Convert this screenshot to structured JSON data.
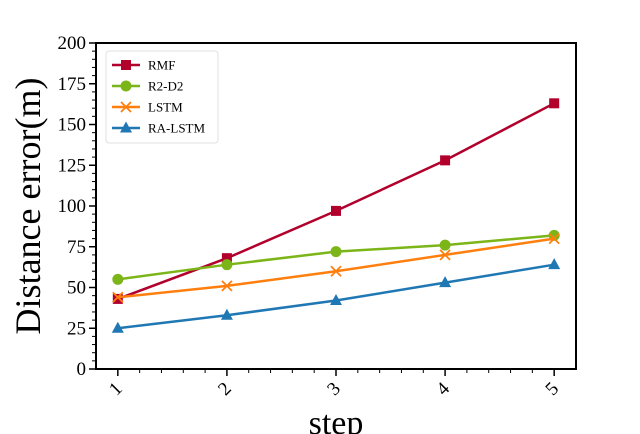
{
  "chart_data": {
    "type": "line",
    "xlabel": "step",
    "ylabel": "Distance error(m)",
    "x": [
      1,
      2,
      3,
      4,
      5
    ],
    "xticks": [
      "1",
      "2",
      "3",
      "4",
      "5"
    ],
    "ylim": [
      0,
      200
    ],
    "yticks": [
      "0",
      "25",
      "50",
      "75",
      "100",
      "125",
      "150",
      "175",
      "200"
    ],
    "grid": false,
    "legend_position": "top-left",
    "series": [
      {
        "name": "RMF",
        "values": [
          43,
          68,
          97,
          128,
          163
        ],
        "color": "#b2002d",
        "marker": "square"
      },
      {
        "name": "R2-D2",
        "values": [
          55,
          64,
          72,
          76,
          82
        ],
        "color": "#7cb518",
        "marker": "circle"
      },
      {
        "name": "LSTM",
        "values": [
          44,
          51,
          60,
          70,
          80
        ],
        "color": "#ff7f0e",
        "marker": "x"
      },
      {
        "name": "RA-LSTM",
        "values": [
          25,
          33,
          42,
          53,
          64
        ],
        "color": "#1f77b4",
        "marker": "triangle"
      }
    ]
  }
}
